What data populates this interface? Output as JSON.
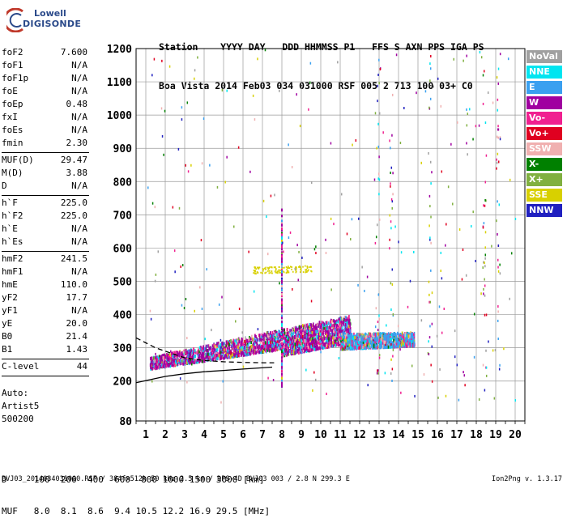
{
  "logo": {
    "line1": "Lowell",
    "line2": "DIGISONDE"
  },
  "header": {
    "line1": "Station    YYYY DAY   DDD HHMMSS P1   FFS S AXN PPS IGA PS",
    "line2": "Boa Vista 2014 Feb03 034 031000 RSF 005 2 713 100 03+ C0"
  },
  "params": [
    {
      "name": "foF2",
      "value": "7.600"
    },
    {
      "name": "foF1",
      "value": "N/A"
    },
    {
      "name": "foF1p",
      "value": "N/A"
    },
    {
      "name": "foE",
      "value": "N/A"
    },
    {
      "name": "foEp",
      "value": "0.48"
    },
    {
      "name": "fxI",
      "value": "N/A"
    },
    {
      "name": "foEs",
      "value": "N/A"
    },
    {
      "name": "fmin",
      "value": "2.30"
    },
    {
      "sep": true
    },
    {
      "name": "MUF(D)",
      "value": "29.47"
    },
    {
      "name": "M(D)",
      "value": "3.88"
    },
    {
      "name": "D",
      "value": "N/A"
    },
    {
      "sep": true
    },
    {
      "name": "h`F",
      "value": "225.0"
    },
    {
      "name": "h`F2",
      "value": "225.0"
    },
    {
      "name": "h`E",
      "value": "N/A"
    },
    {
      "name": "h`Es",
      "value": "N/A"
    },
    {
      "sep": true
    },
    {
      "name": "hmF2",
      "value": "241.5"
    },
    {
      "name": "hmF1",
      "value": "N/A"
    },
    {
      "name": "hmE",
      "value": "110.0"
    },
    {
      "name": "yF2",
      "value": "17.7"
    },
    {
      "name": "yF1",
      "value": "N/A"
    },
    {
      "name": "yE",
      "value": "20.0"
    },
    {
      "name": "B0",
      "value": "21.4"
    },
    {
      "name": "B1",
      "value": "1.43"
    },
    {
      "sep": true
    },
    {
      "name": "C-level",
      "value": "44"
    },
    {
      "sep": true
    }
  ],
  "auto": {
    "line1": "Auto:",
    "line2": "Artist5",
    "line3": "500200"
  },
  "legend": [
    {
      "label": "NoVal",
      "color": "#a0a0a0"
    },
    {
      "label": "NNE",
      "color": "#00e5f0"
    },
    {
      "label": "E",
      "color": "#3aa0f0"
    },
    {
      "label": "W",
      "color": "#a000a0"
    },
    {
      "label": "Vo-",
      "color": "#f02090"
    },
    {
      "label": "Vo+",
      "color": "#e00020"
    },
    {
      "label": "SSW",
      "color": "#f0b0b0"
    },
    {
      "label": "X-",
      "color": "#008000"
    },
    {
      "label": "X+",
      "color": "#80b040"
    },
    {
      "label": "SSE",
      "color": "#d8d000"
    },
    {
      "label": "NNW",
      "color": "#2020c0"
    }
  ],
  "dmuf": {
    "line1": "D     100  200  400  600  800 1000 1500 3000 [km]",
    "line2": "MUF   8.0  8.1  8.6  9.4 10.5 12.2 16.9 29.5 [MHz]"
  },
  "footer": "BVJ03_2014034031000.RSF / 384fx512h 50 kHz 2.5 km / DPS-4D BVJ03 003 / 2.8 N 299.3 E",
  "version": "Ion2Png v. 1.3.17",
  "chart_data": {
    "type": "scatter",
    "xlim": [
      0.5,
      20.5
    ],
    "ylim": [
      80,
      1200
    ],
    "x_ticks": [
      1,
      2,
      3,
      4,
      5,
      6,
      7,
      8,
      9,
      10,
      11,
      12,
      13,
      14,
      15,
      16,
      17,
      18,
      19,
      20
    ],
    "y_ticks": [
      80,
      200,
      300,
      400,
      500,
      600,
      700,
      800,
      900,
      1000,
      1100,
      1200
    ],
    "grid": true,
    "legend_placement": "right",
    "trace_curves": [
      {
        "kind": "solid",
        "points": [
          [
            0.5,
            195
          ],
          [
            2,
            214
          ],
          [
            3,
            222
          ],
          [
            4,
            228
          ],
          [
            5,
            232
          ],
          [
            6,
            236
          ],
          [
            7.5,
            242
          ]
        ]
      },
      {
        "kind": "dashed",
        "points": [
          [
            0.5,
            330
          ],
          [
            1,
            315
          ],
          [
            1.5,
            300
          ],
          [
            2,
            290
          ],
          [
            2.5,
            280
          ],
          [
            3,
            270
          ],
          [
            4,
            262
          ],
          [
            5,
            258
          ],
          [
            6,
            256
          ],
          [
            7,
            255
          ],
          [
            7.6,
            255
          ]
        ]
      }
    ],
    "echo_regions": [
      {
        "x": [
          1.2,
          8.0
        ],
        "y_low": [
          240,
          300
        ],
        "y_high": [
          275,
          360
        ],
        "dominant": "W"
      },
      {
        "x": [
          8.0,
          11.5
        ],
        "y_low": [
          280,
          320
        ],
        "y_high": [
          360,
          400
        ],
        "dominant": "W"
      },
      {
        "x": [
          11.0,
          14.8
        ],
        "y_low": [
          300,
          310
        ],
        "y_high": [
          345,
          350
        ],
        "dominant": "E"
      },
      {
        "x": [
          6.5,
          9.5
        ],
        "y_low": [
          525,
          530
        ],
        "y_high": [
          545,
          550
        ],
        "dominant": "SSE"
      }
    ]
  }
}
